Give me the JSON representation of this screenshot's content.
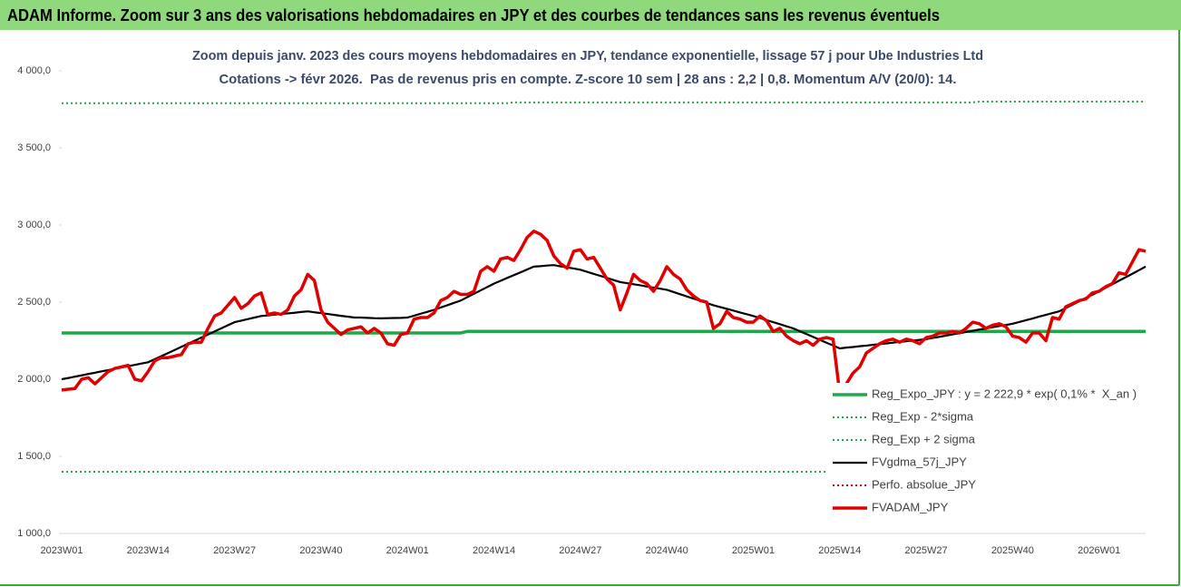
{
  "chart_data": {
    "type": "line",
    "title": "ADAM Informe. Zoom sur 3 ans des valorisations hebdomadaires en JPY et des courbes de tendances sans les revenus éventuels",
    "subtitle": [
      "Zoom depuis janv. 2023 des cours moyens hebdomadaires en JPY, tendance exponentielle, lissage 57 j pour Ube Industries Ltd",
      "Cotations -> févr 2026.  Pas de revenus pris en compte. Z-score 10 sem | 28 ans : 2,2 | 0,8. Momentum A/V (20/0): 14."
    ],
    "ylim": [
      1000,
      4000
    ],
    "yticks": [
      {
        "value": 1000,
        "label": "1 000,0"
      },
      {
        "value": 1500,
        "label": "1 500,0"
      },
      {
        "value": 2000,
        "label": "2 000,0"
      },
      {
        "value": 2500,
        "label": "2 500,0"
      },
      {
        "value": 3000,
        "label": "3 000,0"
      },
      {
        "value": 3500,
        "label": "3 500,0"
      },
      {
        "value": 4000,
        "label": "4 000,0"
      }
    ],
    "grid": false,
    "legend": "right",
    "categories": [
      "2023W01",
      null,
      null,
      null,
      null,
      null,
      null,
      null,
      null,
      null,
      null,
      null,
      null,
      "2023W14",
      null,
      null,
      null,
      null,
      null,
      null,
      null,
      null,
      null,
      null,
      null,
      null,
      "2023W27",
      null,
      null,
      null,
      null,
      null,
      null,
      null,
      null,
      null,
      null,
      null,
      null,
      "2023W40",
      null,
      null,
      null,
      null,
      null,
      null,
      null,
      null,
      null,
      null,
      null,
      null,
      "2024W01",
      null,
      null,
      null,
      null,
      null,
      null,
      null,
      null,
      null,
      null,
      null,
      null,
      "2024W14",
      null,
      null,
      null,
      null,
      null,
      null,
      null,
      null,
      null,
      null,
      null,
      null,
      "2024W27",
      null,
      null,
      null,
      null,
      null,
      null,
      null,
      null,
      null,
      null,
      null,
      null,
      "2024W40",
      null,
      null,
      null,
      null,
      null,
      null,
      null,
      null,
      null,
      null,
      null,
      null,
      "2025W01",
      null,
      null,
      null,
      null,
      null,
      null,
      null,
      null,
      null,
      null,
      null,
      null,
      "2025W14",
      null,
      null,
      null,
      null,
      null,
      null,
      null,
      null,
      null,
      null,
      null,
      null,
      "2025W27",
      null,
      null,
      null,
      null,
      null,
      null,
      null,
      null,
      null,
      null,
      null,
      null,
      "2025W40",
      null,
      null,
      null,
      null,
      null,
      null,
      null,
      null,
      null,
      null,
      null,
      null,
      "2026W01",
      null,
      null,
      null,
      null,
      null,
      null,
      null
    ],
    "series": [
      {
        "name": "Reg_Expo_JPY : y = 2 222,9 * exp( 0,1% *  X_an )",
        "color": "#1fa84a",
        "line_style": "thick",
        "values": [
          2300,
          2300,
          2300,
          2300,
          2300,
          2300,
          2300,
          2300,
          2300,
          2300,
          2300,
          2300,
          2300,
          2300,
          2300,
          2300,
          2300,
          2300,
          2300,
          2300,
          2300,
          2300,
          2300,
          2300,
          2300,
          2300,
          2300,
          2300,
          2300,
          2300,
          2300,
          2300,
          2300,
          2300,
          2300,
          2300,
          2300,
          2300,
          2300,
          2300,
          2300,
          2300,
          2300,
          2300,
          2300,
          2300,
          2300,
          2300,
          2300,
          2300,
          2300,
          2300,
          2300,
          2300,
          2300,
          2300,
          2300,
          2300,
          2300,
          2300,
          2300,
          2310,
          2310,
          2310,
          2310,
          2310,
          2310,
          2310,
          2310,
          2310,
          2310,
          2310,
          2310,
          2310,
          2310,
          2310,
          2310,
          2310,
          2310,
          2310,
          2310,
          2310,
          2310,
          2310,
          2310,
          2310,
          2310,
          2310,
          2310,
          2310,
          2310,
          2310,
          2310,
          2310,
          2310,
          2310,
          2310,
          2310,
          2310,
          2310,
          2310,
          2310,
          2310,
          2310,
          2310,
          2310,
          2310,
          2310,
          2310,
          2310,
          2310,
          2310,
          2310,
          2310,
          2310,
          2310,
          2310,
          2310,
          2310,
          2310,
          2310,
          2310,
          2310,
          2310,
          2310,
          2310,
          2310,
          2310,
          2310,
          2310,
          2310,
          2310,
          2310,
          2310,
          2310,
          2310,
          2310,
          2310,
          2310,
          2310,
          2310,
          2310,
          2310,
          2310,
          2310,
          2310,
          2310,
          2310,
          2310,
          2310,
          2310,
          2310,
          2310,
          2310,
          2310,
          2310,
          2310,
          2310,
          2310,
          2310,
          2310,
          2310,
          2310,
          2310
        ]
      },
      {
        "name": "Reg_Exp - 2*sigma",
        "color": "#1fa84a",
        "line_style": "dotted",
        "values": [
          1400,
          1400,
          1400,
          1400,
          1400,
          1400,
          1400,
          1400,
          1400,
          1400,
          1400,
          1400,
          1400,
          1400,
          1400,
          1400,
          1400,
          1400,
          1400,
          1400,
          1400,
          1400,
          1400,
          1400,
          1400,
          1400,
          1400,
          1400,
          1400,
          1400,
          1400,
          1400,
          1400,
          1400,
          1400,
          1400,
          1400,
          1400,
          1400,
          1400,
          1400,
          1400,
          1400,
          1400,
          1400,
          1400,
          1400,
          1400,
          1400,
          1400,
          1400,
          1400,
          1400,
          1400,
          1400,
          1400,
          1400,
          1400,
          1400,
          1400,
          1400,
          1400,
          1400,
          1400,
          1400,
          1400,
          1400,
          1400,
          1400,
          1400,
          1400,
          1400,
          1400,
          1400,
          1400,
          1400,
          1400,
          1400,
          1400,
          1400,
          1400,
          1400,
          1400,
          1400,
          1400,
          1400,
          1400,
          1400,
          1400,
          1400,
          1400,
          1400,
          1400,
          1400,
          1400,
          1400,
          1400,
          1400,
          1400,
          1400,
          1400,
          1400,
          1400,
          1400,
          1400,
          1400,
          1400,
          1400,
          1400,
          1400,
          1400,
          1400,
          1400,
          1400,
          1400,
          1400,
          1400,
          1400,
          1400,
          1400,
          1400,
          1400,
          1400,
          1400,
          1400,
          1400,
          1400,
          1400,
          1400,
          1400,
          1400,
          1400,
          1400,
          1400,
          1400,
          1400,
          1400,
          1400,
          1400,
          1400,
          1400,
          1400,
          1400,
          1400,
          1405,
          1405,
          1405,
          1405,
          1405,
          1405,
          1405,
          1405,
          1405,
          1405,
          1405,
          1405,
          1405,
          1405,
          1405,
          1405,
          1405,
          1405,
          1405,
          1405
        ]
      },
      {
        "name": "Reg_Exp + 2 sigma",
        "color": "#1fa84a",
        "line_style": "dotted",
        "values": [
          3790,
          3790,
          3790,
          3790,
          3790,
          3790,
          3790,
          3790,
          3790,
          3790,
          3790,
          3790,
          3790,
          3790,
          3790,
          3790,
          3790,
          3790,
          3790,
          3790,
          3790,
          3790,
          3790,
          3790,
          3790,
          3790,
          3790,
          3790,
          3790,
          3790,
          3790,
          3790,
          3790,
          3790,
          3790,
          3790,
          3790,
          3790,
          3790,
          3790,
          3790,
          3790,
          3790,
          3790,
          3790,
          3790,
          3790,
          3790,
          3790,
          3790,
          3790,
          3790,
          3790,
          3790,
          3790,
          3790,
          3790,
          3790,
          3790,
          3790,
          3790,
          3790,
          3790,
          3790,
          3790,
          3790,
          3790,
          3790,
          3795,
          3795,
          3795,
          3795,
          3795,
          3795,
          3795,
          3795,
          3795,
          3795,
          3795,
          3795,
          3795,
          3795,
          3795,
          3795,
          3795,
          3795,
          3795,
          3795,
          3795,
          3795,
          3795,
          3795,
          3795,
          3795,
          3795,
          3795,
          3795,
          3795,
          3795,
          3795,
          3795,
          3795,
          3795,
          3795,
          3795,
          3795,
          3795,
          3795,
          3795,
          3795,
          3795,
          3795,
          3795,
          3795,
          3795,
          3795,
          3795,
          3795,
          3795,
          3795,
          3795,
          3795,
          3795,
          3795,
          3795,
          3795,
          3795,
          3795,
          3795,
          3795,
          3795,
          3795,
          3795,
          3795,
          3795,
          3795,
          3795,
          3795,
          3800,
          3800,
          3800,
          3800,
          3800,
          3800,
          3800,
          3800,
          3800,
          3800,
          3800,
          3800,
          3800,
          3800,
          3800,
          3800,
          3800,
          3800,
          3800,
          3800,
          3800,
          3800,
          3800,
          3800,
          3800,
          3800
        ]
      },
      {
        "name": "FVgdma_57j_JPY",
        "color": "#000000",
        "line_style": "solid",
        "values": [
          2000,
          2008,
          2017,
          2025,
          2034,
          2042,
          2051,
          2059,
          2068,
          2076,
          2085,
          2093,
          2102,
          2110,
          2130,
          2150,
          2170,
          2190,
          2210,
          2230,
          2250,
          2270,
          2290,
          2310,
          2330,
          2350,
          2370,
          2380,
          2390,
          2400,
          2410,
          2414,
          2419,
          2423,
          2427,
          2431,
          2436,
          2440,
          2434,
          2429,
          2423,
          2417,
          2411,
          2406,
          2400,
          2400,
          2398,
          2396,
          2395,
          2396,
          2397,
          2398,
          2400,
          2412,
          2425,
          2437,
          2450,
          2465,
          2480,
          2495,
          2510,
          2532,
          2554,
          2576,
          2598,
          2620,
          2638,
          2657,
          2675,
          2693,
          2712,
          2730,
          2733,
          2737,
          2740,
          2732,
          2725,
          2718,
          2710,
          2697,
          2683,
          2670,
          2657,
          2643,
          2630,
          2623,
          2616,
          2609,
          2601,
          2594,
          2587,
          2580,
          2566,
          2551,
          2537,
          2523,
          2509,
          2494,
          2480,
          2468,
          2457,
          2445,
          2433,
          2422,
          2410,
          2397,
          2383,
          2370,
          2357,
          2343,
          2330,
          2311,
          2293,
          2274,
          2256,
          2237,
          2219,
          2200,
          2205,
          2209,
          2214,
          2218,
          2223,
          2228,
          2232,
          2237,
          2242,
          2246,
          2251,
          2255,
          2260,
          2268,
          2275,
          2283,
          2291,
          2298,
          2306,
          2314,
          2322,
          2329,
          2337,
          2345,
          2352,
          2360,
          2371,
          2383,
          2394,
          2406,
          2417,
          2429,
          2440,
          2462,
          2483,
          2505,
          2527,
          2548,
          2570,
          2593,
          2616,
          2639,
          2661,
          2684,
          2707,
          2730
        ]
      },
      {
        "name": "Perfo. absolue_JPY",
        "color": "#e00000",
        "line_style": "dotted"
      },
      {
        "name": "FVADAM_JPY",
        "color": "#e00000",
        "line_style": "thick",
        "values": [
          1930,
          1935,
          1940,
          2000,
          2010,
          1970,
          2010,
          2050,
          2070,
          2080,
          2090,
          2000,
          1990,
          2050,
          2120,
          2140,
          2140,
          2150,
          2160,
          2230,
          2240,
          2240,
          2330,
          2410,
          2430,
          2480,
          2530,
          2460,
          2490,
          2540,
          2560,
          2420,
          2430,
          2420,
          2450,
          2540,
          2580,
          2680,
          2640,
          2450,
          2370,
          2330,
          2290,
          2320,
          2330,
          2340,
          2300,
          2330,
          2300,
          2230,
          2220,
          2290,
          2300,
          2390,
          2400,
          2400,
          2430,
          2510,
          2530,
          2570,
          2550,
          2550,
          2570,
          2700,
          2730,
          2700,
          2780,
          2790,
          2770,
          2840,
          2920,
          2960,
          2940,
          2900,
          2800,
          2750,
          2720,
          2830,
          2840,
          2780,
          2790,
          2720,
          2650,
          2610,
          2450,
          2560,
          2680,
          2640,
          2620,
          2570,
          2640,
          2730,
          2680,
          2650,
          2580,
          2540,
          2510,
          2500,
          2330,
          2360,
          2440,
          2400,
          2390,
          2370,
          2370,
          2410,
          2380,
          2310,
          2330,
          2280,
          2250,
          2230,
          2250,
          2220,
          2260,
          2270,
          2260,
          1910,
          1970,
          2040,
          2080,
          2170,
          2200,
          2230,
          2250,
          2260,
          2240,
          2260,
          2250,
          2230,
          2270,
          2280,
          2300,
          2300,
          2310,
          2300,
          2330,
          2370,
          2360,
          2330,
          2350,
          2360,
          2340,
          2280,
          2270,
          2240,
          2300,
          2300,
          2250,
          2400,
          2390,
          2470,
          2490,
          2510,
          2520,
          2560,
          2570,
          2600,
          2620,
          2690,
          2680,
          2760,
          2840,
          2830
        ]
      }
    ]
  }
}
